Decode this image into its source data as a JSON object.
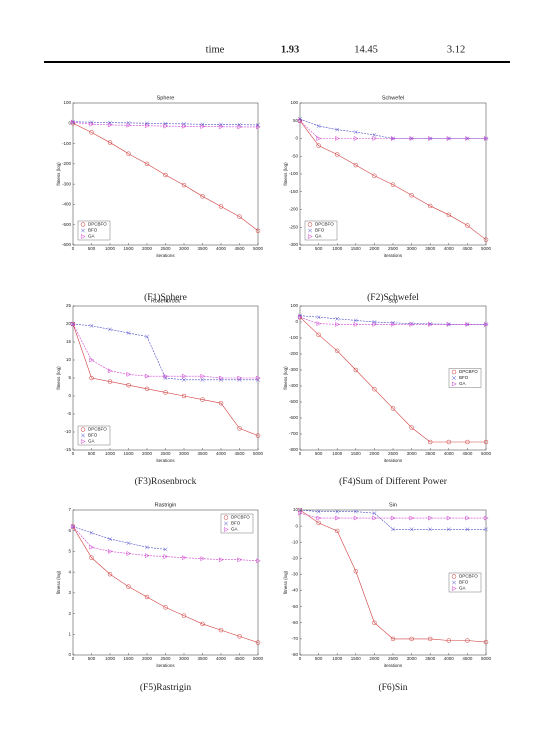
{
  "table": {
    "rows": [
      [
        "time",
        "1.93",
        "14.45",
        "3.12"
      ]
    ]
  },
  "chart_data": [
    {
      "type": "line",
      "title": "Sphere",
      "caption": "(F1)Sphere",
      "xlabel": "iterations",
      "ylabel": "fitness (log)",
      "x": [
        0,
        500,
        1000,
        1500,
        2000,
        2500,
        3000,
        3500,
        4000,
        4500,
        5000
      ],
      "series": [
        {
          "name": "DPCBFO",
          "color": "#d04040",
          "marker": "circle",
          "values": [
            0,
            -45,
            -95,
            -150,
            -200,
            -255,
            -305,
            -360,
            -410,
            -460,
            -530
          ]
        },
        {
          "name": "BFO",
          "color": "#4a4ac8",
          "marker": "x",
          "values": [
            8,
            5,
            3,
            2,
            0,
            -2,
            -3,
            -5,
            -6,
            -7,
            -8
          ]
        },
        {
          "name": "GA",
          "color": "#d040d0",
          "marker": "triangle",
          "values": [
            5,
            -5,
            -8,
            -10,
            -12,
            -14,
            -15,
            -16,
            -17,
            -18,
            -18
          ]
        }
      ],
      "xlim": [
        0,
        5000
      ],
      "ylim": [
        -600,
        100
      ],
      "xticks": [
        0,
        500,
        1000,
        1500,
        2000,
        2500,
        3000,
        3500,
        4000,
        4500,
        5000
      ],
      "yticks": [
        -600,
        -500,
        -400,
        -300,
        -200,
        -100,
        0,
        100
      ],
      "grid": false,
      "legend": "lower left"
    },
    {
      "type": "line",
      "title": "Schwefel",
      "caption": "(F2)Schwefel",
      "xlabel": "iterations",
      "ylabel": "fitness (log)",
      "x": [
        0,
        500,
        1000,
        1500,
        2000,
        2500,
        3000,
        3500,
        4000,
        4500,
        5000
      ],
      "series": [
        {
          "name": "DPCBFO",
          "color": "#d04040",
          "marker": "circle",
          "values": [
            50,
            -20,
            -45,
            -75,
            -105,
            -130,
            -160,
            -190,
            -215,
            -245,
            -285
          ]
        },
        {
          "name": "BFO",
          "color": "#4a4ac8",
          "marker": "x",
          "values": [
            55,
            35,
            25,
            18,
            10,
            0,
            0,
            0,
            0,
            0,
            0
          ]
        },
        {
          "name": "GA",
          "color": "#d040d0",
          "marker": "triangle",
          "values": [
            50,
            0,
            0,
            0,
            0,
            0,
            0,
            0,
            0,
            0,
            0
          ]
        }
      ],
      "xlim": [
        0,
        5000
      ],
      "ylim": [
        -300,
        100
      ],
      "xticks": [
        0,
        500,
        1000,
        1500,
        2000,
        2500,
        3000,
        3500,
        4000,
        4500,
        5000
      ],
      "yticks": [
        -300,
        -250,
        -200,
        -150,
        -100,
        -50,
        0,
        50,
        100
      ],
      "grid": false,
      "legend": "lower left"
    },
    {
      "type": "line",
      "title": "Rosenbrock",
      "caption": "(F3)Rosenbrock",
      "xlabel": "iterations",
      "ylabel": "fitness (log)",
      "x": [
        0,
        500,
        1000,
        1500,
        2000,
        2500,
        3000,
        3500,
        4000,
        4500,
        5000
      ],
      "series": [
        {
          "name": "DPCBFO",
          "color": "#d04040",
          "marker": "circle",
          "values": [
            20,
            5,
            4,
            3,
            2,
            1,
            0,
            -1,
            -2,
            -9,
            -11
          ]
        },
        {
          "name": "BFO",
          "color": "#4a4ac8",
          "marker": "x",
          "values": [
            20,
            19.5,
            18.5,
            17.5,
            16.5,
            5,
            4.5,
            4.5,
            4.5,
            4.5,
            4.5
          ]
        },
        {
          "name": "GA",
          "color": "#d040d0",
          "marker": "triangle",
          "values": [
            20,
            10,
            7,
            6,
            5.5,
            5.5,
            5.5,
            5.5,
            5,
            5,
            5
          ]
        }
      ],
      "xlim": [
        0,
        5000
      ],
      "ylim": [
        -15,
        25
      ],
      "xticks": [
        0,
        500,
        1000,
        1500,
        2000,
        2500,
        3000,
        3500,
        4000,
        4500,
        5000
      ],
      "yticks": [
        -15,
        -10,
        -5,
        0,
        5,
        10,
        15,
        20,
        25
      ],
      "grid": false,
      "legend": "lower left"
    },
    {
      "type": "line",
      "title": "Sop",
      "caption": "(F4)Sum of Different Power",
      "xlabel": "iterations",
      "ylabel": "fitness (log)",
      "x": [
        0,
        500,
        1000,
        1500,
        2000,
        2500,
        3000,
        3500,
        4000,
        4500,
        5000
      ],
      "series": [
        {
          "name": "DPCBFO",
          "color": "#d04040",
          "marker": "circle",
          "values": [
            30,
            -80,
            -180,
            -300,
            -420,
            -540,
            -660,
            -750,
            -750,
            -750,
            -750
          ]
        },
        {
          "name": "BFO",
          "color": "#4a4ac8",
          "marker": "x",
          "values": [
            40,
            30,
            20,
            10,
            0,
            -5,
            -10,
            -12,
            -14,
            -15,
            -15
          ]
        },
        {
          "name": "GA",
          "color": "#d040d0",
          "marker": "triangle",
          "values": [
            30,
            -10,
            -15,
            -15,
            -15,
            -15,
            -15,
            -15,
            -15,
            -15,
            -15
          ]
        }
      ],
      "xlim": [
        0,
        5000
      ],
      "ylim": [
        -800,
        100
      ],
      "xticks": [
        0,
        500,
        1000,
        1500,
        2000,
        2500,
        3000,
        3500,
        4000,
        4500,
        5000
      ],
      "yticks": [
        -800,
        -700,
        -600,
        -500,
        -400,
        -300,
        -200,
        -100,
        0,
        100
      ],
      "grid": false,
      "legend": "right"
    },
    {
      "type": "line",
      "title": "Rastrigin",
      "caption": "(F5)Rastrigin",
      "xlabel": "iterations",
      "ylabel": "fitness (log)",
      "x": [
        0,
        500,
        1000,
        1500,
        2000,
        2500,
        3000,
        3500,
        4000,
        4500,
        5000
      ],
      "series": [
        {
          "name": "DPCBFO",
          "color": "#d04040",
          "marker": "circle",
          "values": [
            6.2,
            4.7,
            3.9,
            3.3,
            2.8,
            2.3,
            1.9,
            1.5,
            1.2,
            0.9,
            0.6
          ]
        },
        {
          "name": "BFO",
          "color": "#4a4ac8",
          "marker": "x",
          "values": [
            6.2,
            5.9,
            5.6,
            5.4,
            5.2,
            5.1,
            null,
            null,
            null,
            null,
            null
          ]
        },
        {
          "name": "GA",
          "color": "#d040d0",
          "marker": "triangle",
          "values": [
            6.2,
            5.2,
            5,
            4.9,
            4.8,
            4.75,
            4.7,
            4.65,
            4.6,
            4.6,
            4.55
          ]
        }
      ],
      "xlim": [
        0,
        5000
      ],
      "ylim": [
        0,
        7
      ],
      "xticks": [
        0,
        500,
        1000,
        1500,
        2000,
        2500,
        3000,
        3500,
        4000,
        4500,
        5000
      ],
      "yticks": [
        0,
        1,
        2,
        3,
        4,
        5,
        6,
        7
      ],
      "grid": false,
      "legend": "upper right"
    },
    {
      "type": "line",
      "title": "Sin",
      "caption": "(F6)Sin",
      "xlabel": "iterations",
      "ylabel": "fitness (log)",
      "x": [
        0,
        500,
        1000,
        1500,
        2000,
        2500,
        3000,
        3500,
        4000,
        4500,
        5000
      ],
      "series": [
        {
          "name": "DPCBFO",
          "color": "#d04040",
          "marker": "circle",
          "values": [
            10,
            2,
            -3,
            -28,
            -60,
            -70,
            -70,
            -70,
            -71,
            -71,
            -72
          ]
        },
        {
          "name": "BFO",
          "color": "#4a4ac8",
          "marker": "x",
          "values": [
            10,
            9,
            9,
            9,
            8,
            -2,
            -2,
            -2,
            -2,
            -2,
            -2
          ]
        },
        {
          "name": "GA",
          "color": "#d040d0",
          "marker": "triangle",
          "values": [
            8,
            5,
            5,
            5,
            5,
            5,
            5,
            5,
            5,
            5,
            5
          ]
        }
      ],
      "xlim": [
        0,
        5000
      ],
      "ylim": [
        -80,
        10
      ],
      "xticks": [
        0,
        500,
        1000,
        1500,
        2000,
        2500,
        3000,
        3500,
        4000,
        4500,
        5000
      ],
      "yticks": [
        -80,
        -70,
        -60,
        -50,
        -40,
        -30,
        -20,
        -10,
        0,
        10
      ],
      "grid": false,
      "legend": "right"
    }
  ]
}
